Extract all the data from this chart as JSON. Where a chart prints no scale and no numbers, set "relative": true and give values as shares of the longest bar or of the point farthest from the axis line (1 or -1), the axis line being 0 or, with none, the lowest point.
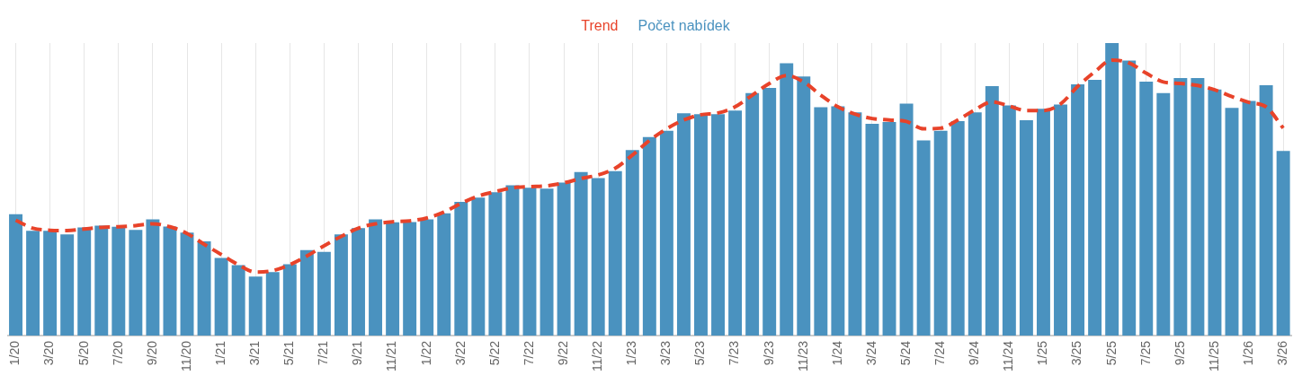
{
  "chart_data": {
    "type": "bar",
    "relative": true,
    "legend": "top",
    "grid": "x",
    "categories": [
      "1/20",
      null,
      "3/20",
      null,
      "5/20",
      null,
      "7/20",
      null,
      "9/20",
      null,
      "11/20",
      null,
      "1/21",
      null,
      "3/21",
      null,
      "5/21",
      null,
      "7/21",
      null,
      "9/21",
      null,
      "11/21",
      null,
      "1/22",
      null,
      "3/22",
      null,
      "5/22",
      null,
      "7/22",
      null,
      "9/22",
      null,
      "11/22",
      null,
      "1/23",
      null,
      "3/23",
      null,
      "5/23",
      null,
      "7/23",
      null,
      "9/23",
      null,
      "11/23",
      null,
      "1/24",
      null,
      "3/24",
      null,
      "5/24",
      null,
      "7/24",
      null,
      "9/24",
      null,
      "11/24",
      null,
      "1/25",
      null,
      "3/25",
      null,
      "5/25",
      null,
      "7/25",
      null,
      "9/25",
      null,
      "11/25",
      null,
      "1/26",
      null,
      "3/26"
    ],
    "series": [
      {
        "name": "Trend",
        "type": "line",
        "line_style": "dashed",
        "color": "#e8432a",
        "values": [
          0.394,
          0.367,
          0.36,
          0.359,
          0.364,
          0.37,
          0.372,
          0.376,
          0.382,
          0.372,
          0.349,
          0.312,
          0.277,
          0.242,
          0.217,
          0.222,
          0.242,
          0.272,
          0.307,
          0.339,
          0.367,
          0.382,
          0.389,
          0.392,
          0.402,
          0.422,
          0.452,
          0.477,
          0.492,
          0.505,
          0.509,
          0.512,
          0.522,
          0.537,
          0.549,
          0.572,
          0.617,
          0.667,
          0.707,
          0.737,
          0.755,
          0.761,
          0.782,
          0.822,
          0.862,
          0.889,
          0.867,
          0.822,
          0.782,
          0.757,
          0.742,
          0.737,
          0.732,
          0.707,
          0.709,
          0.737,
          0.772,
          0.799,
          0.785,
          0.769,
          0.769,
          0.792,
          0.852,
          0.902,
          0.942,
          0.932,
          0.897,
          0.867,
          0.862,
          0.855,
          0.84,
          0.817,
          0.797,
          0.782,
          0.709
        ]
      },
      {
        "name": "Počet nabídek",
        "color": "#4a92bf",
        "values": [
          0.415,
          0.358,
          0.358,
          0.346,
          0.37,
          0.376,
          0.372,
          0.361,
          0.397,
          0.373,
          0.352,
          0.322,
          0.265,
          0.241,
          0.202,
          0.217,
          0.244,
          0.292,
          0.286,
          0.346,
          0.367,
          0.397,
          0.387,
          0.388,
          0.397,
          0.418,
          0.457,
          0.472,
          0.49,
          0.514,
          0.505,
          0.502,
          0.523,
          0.559,
          0.538,
          0.562,
          0.634,
          0.679,
          0.7,
          0.76,
          0.757,
          0.757,
          0.769,
          0.829,
          0.847,
          0.931,
          0.886,
          0.781,
          0.784,
          0.763,
          0.724,
          0.73,
          0.793,
          0.667,
          0.7,
          0.733,
          0.763,
          0.853,
          0.787,
          0.736,
          0.775,
          0.79,
          0.859,
          0.874,
          1,
          0.94,
          0.868,
          0.829,
          0.88,
          0.88,
          0.841,
          0.778,
          0.802,
          0.856,
          0.631
        ]
      }
    ]
  }
}
